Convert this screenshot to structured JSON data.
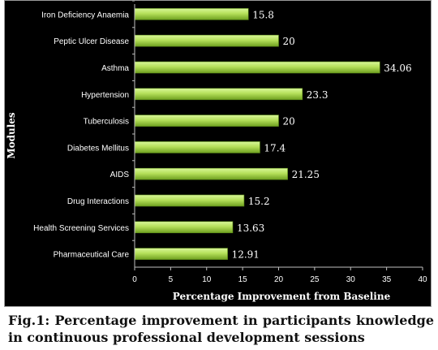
{
  "chart_data": {
    "type": "bar",
    "orientation": "horizontal",
    "categories": [
      "Iron Deficiency Anaemia",
      "Peptic Ulcer Disease",
      "Asthma",
      "Hypertension",
      "Tuberculosis",
      "Diabetes Mellitus",
      "AIDS",
      "Drug Interactions",
      "Health Screening Services",
      "Pharmaceutical Care"
    ],
    "values": [
      15.8,
      20,
      34.06,
      23.3,
      20,
      17.4,
      21.25,
      15.2,
      13.63,
      12.91
    ],
    "data_labels": [
      "15.8",
      "20",
      "34.06",
      "23.3",
      "20",
      "17.4",
      "21.25",
      "15.2",
      "13.63",
      "12.91"
    ],
    "xlabel": "Percentage Improvement from Baseline",
    "ylabel": "Modules",
    "xlim": [
      0,
      40
    ],
    "xticks": [
      "0",
      "5",
      "10",
      "15",
      "20",
      "25",
      "30",
      "35",
      "40"
    ],
    "grid": false,
    "legend": "none",
    "colors": {
      "background": "#000000",
      "bar_light": "#c9f07a",
      "bar_dark": "#7fb52a",
      "text": "#ffffff",
      "axis": "#bfbfbf"
    }
  },
  "caption": "Fig.1: Percentage improvement in participants knowledge in continuous professional development sessions"
}
